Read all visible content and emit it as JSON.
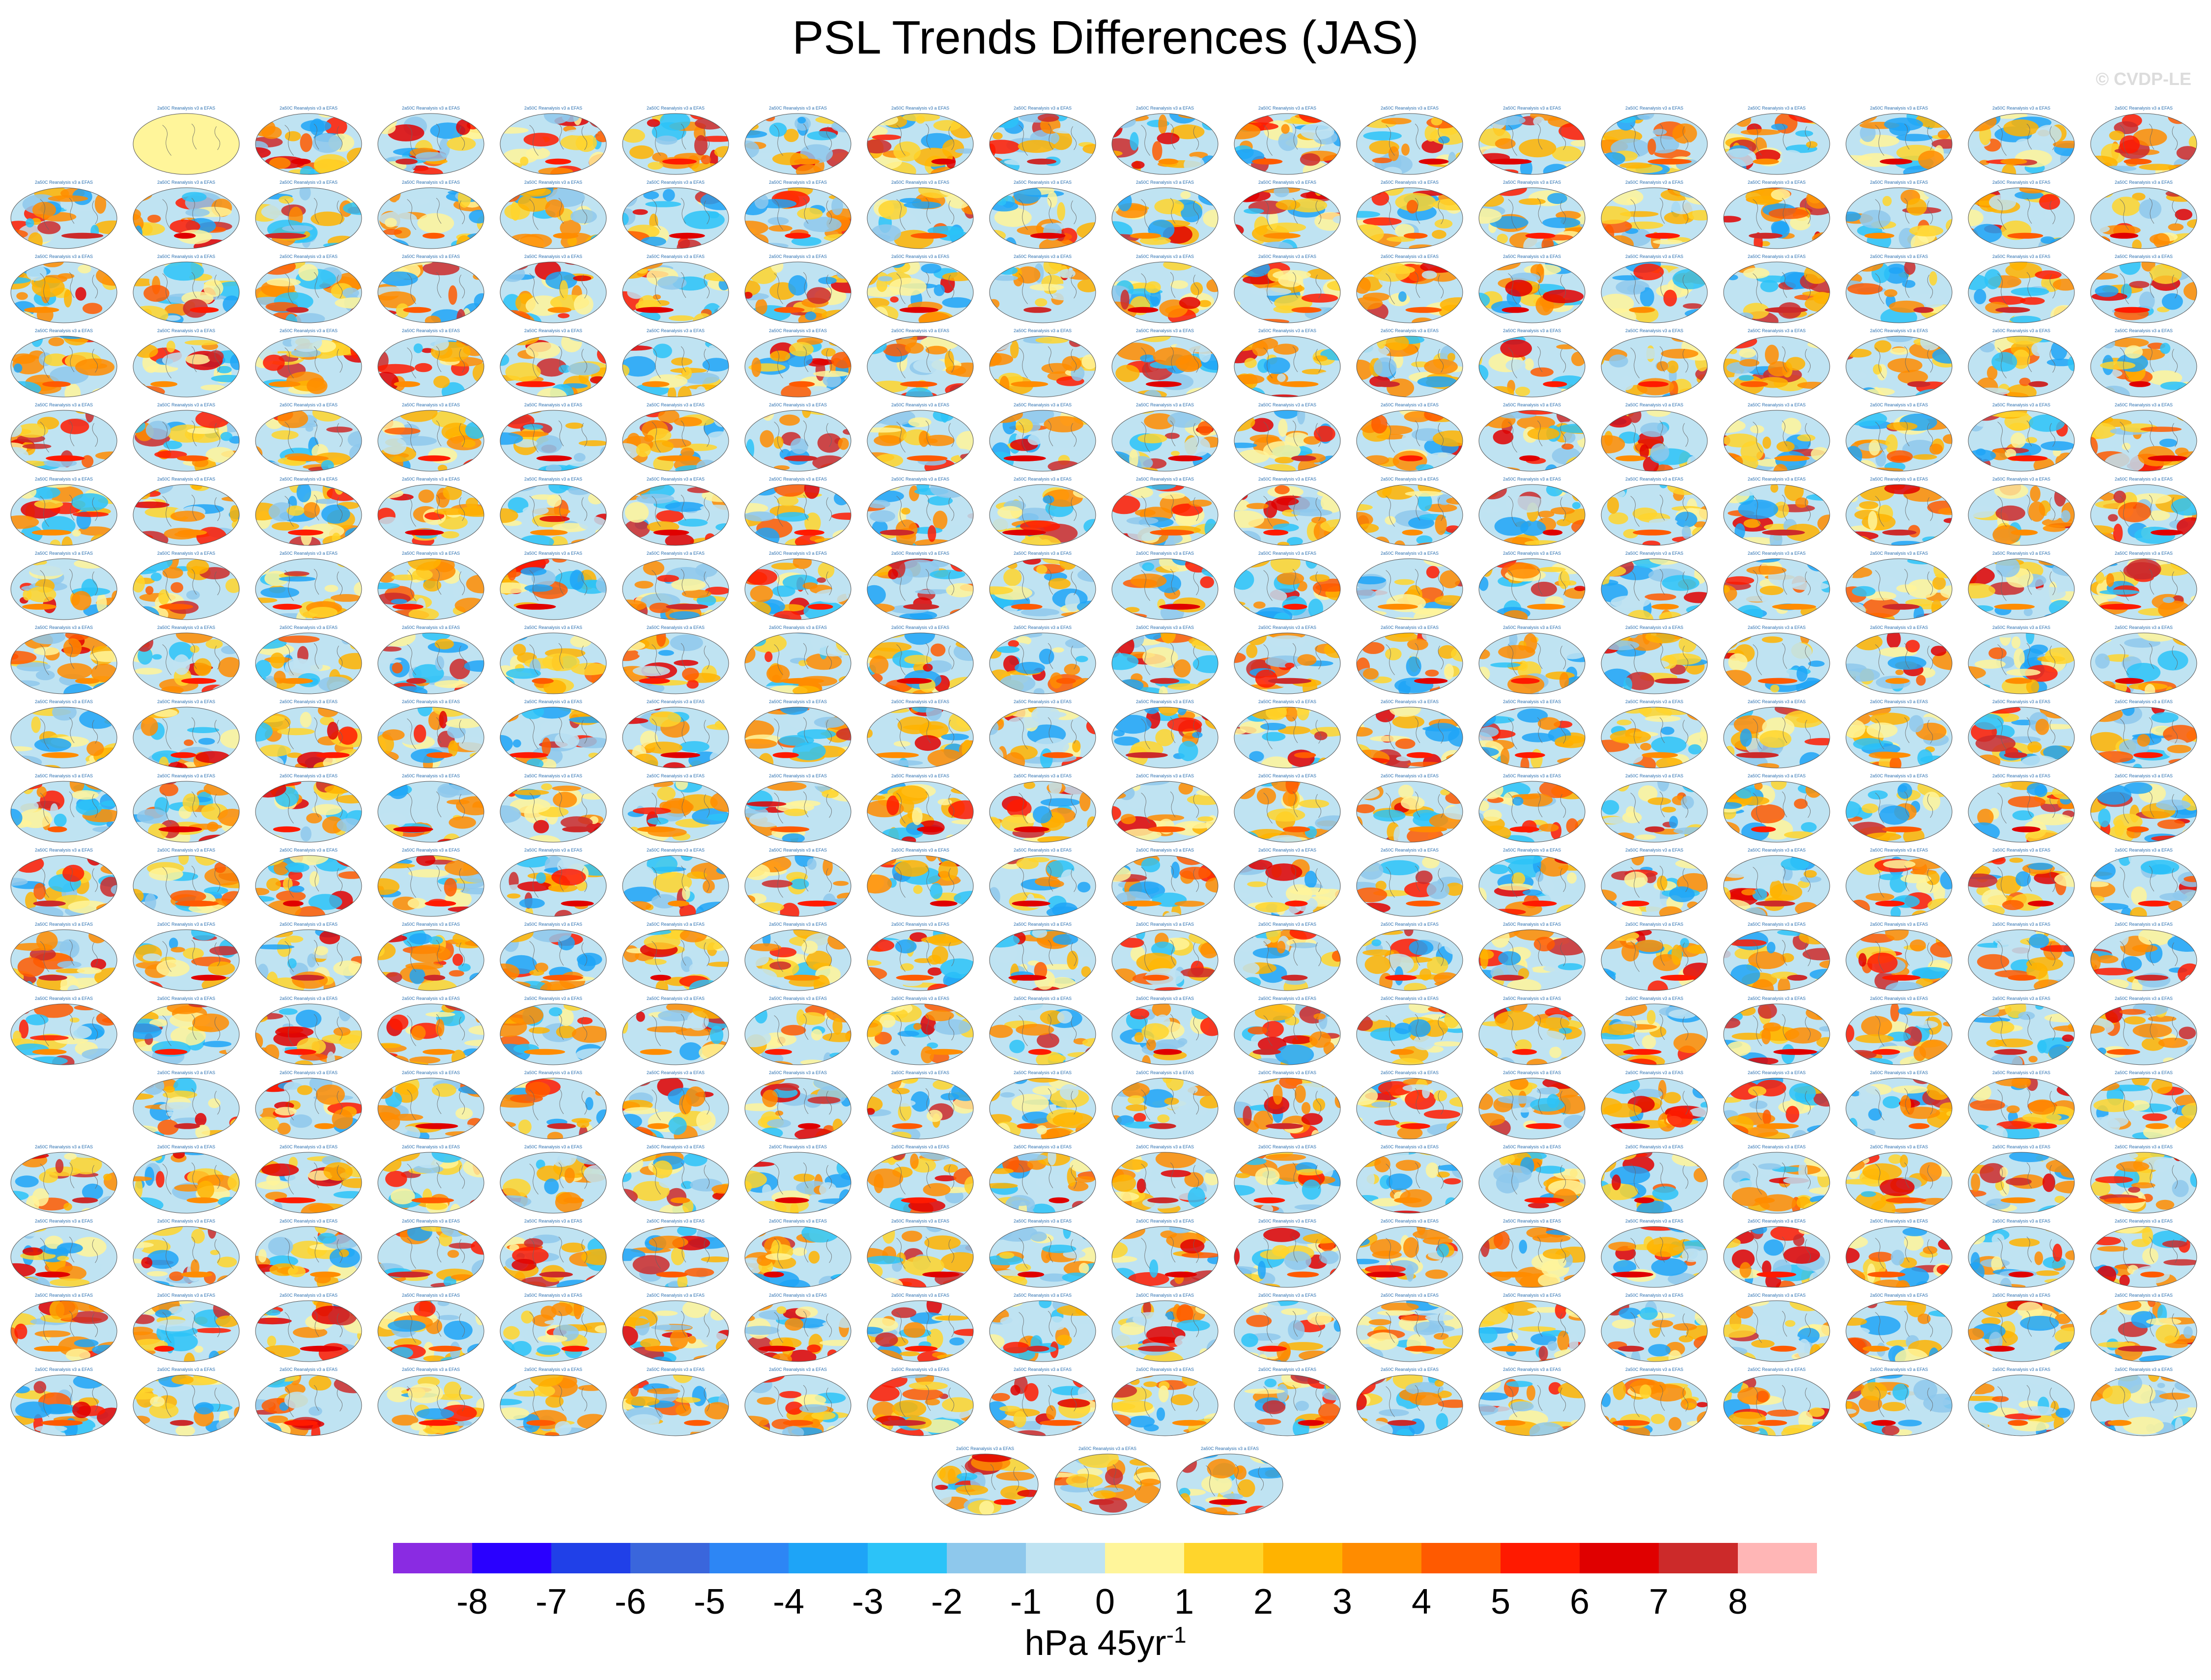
{
  "title": "PSL Trends Differences (JAS)",
  "watermark": "© CVDP-LE",
  "chart_data": {
    "type": "heatmap",
    "title": "PSL Trends Differences (JAS)",
    "layout": {
      "rows": 18,
      "cols": 18,
      "panels_per_row": [
        17,
        18,
        18,
        18,
        18,
        18,
        18,
        18,
        18,
        18,
        18,
        18,
        18,
        17,
        18,
        18,
        18,
        18
      ],
      "extra_bottom_row": 3,
      "first_panel": "observations (flat yellow)"
    },
    "colorbar": {
      "levels": [
        "-8",
        "-7",
        "-6",
        "-5",
        "-4",
        "-3",
        "-2",
        "-1",
        "0",
        "1",
        "2",
        "3",
        "4",
        "5",
        "6",
        "7",
        "8"
      ],
      "colors": [
        "#8a2be2",
        "#2a00ff",
        "#2040e8",
        "#3a66dc",
        "#2d86f5",
        "#1ea4f7",
        "#2cc3f8",
        "#8ec8ec",
        "#bfe3f2",
        "#fff59a",
        "#ffd52c",
        "#ffb300",
        "#ff8c00",
        "#ff5a00",
        "#ff1a00",
        "#e00000",
        "#cc2a2a",
        "#ffb6b6"
      ],
      "units_main": "hPa 45yr",
      "units_sup": "-1"
    },
    "panel_caption": "2a50C Reanalysis v3 a EFAS"
  }
}
